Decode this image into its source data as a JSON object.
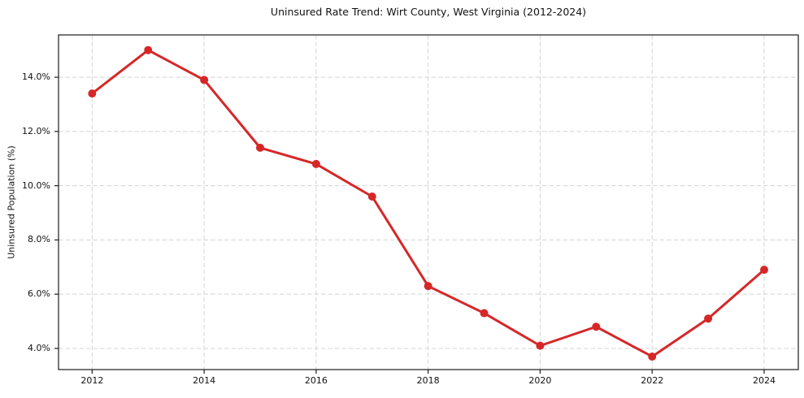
{
  "chart_data": {
    "type": "line",
    "title": "Uninsured Rate Trend: Wirt County, West Virginia (2012-2024)",
    "xlabel": "",
    "ylabel": "Uninsured Population (%)",
    "x": [
      2012,
      2013,
      2014,
      2015,
      2016,
      2017,
      2018,
      2019,
      2020,
      2021,
      2022,
      2023,
      2024
    ],
    "values": [
      13.4,
      15.0,
      13.9,
      11.4,
      10.8,
      9.6,
      6.3,
      5.3,
      4.1,
      4.8,
      3.7,
      5.1,
      6.9
    ],
    "xticks": {
      "values": [
        2012,
        2014,
        2016,
        2018,
        2020,
        2022,
        2024
      ],
      "labels": [
        "2012",
        "2014",
        "2016",
        "2018",
        "2020",
        "2022",
        "2024"
      ]
    },
    "yticks": {
      "values": [
        4,
        6,
        8,
        10,
        12,
        14
      ],
      "labels": [
        "4.0%",
        "6.0%",
        "8.0%",
        "10.0%",
        "12.0%",
        "14.0%"
      ]
    },
    "xlim": [
      2011.4,
      2024.61
    ],
    "ylim": [
      3.22,
      15.56
    ],
    "grid": true,
    "legend": false,
    "style": {
      "line_color": "#d62728",
      "marker_color": "#d62728",
      "grid_color": "#d4d4d4",
      "spine_color": "#1c1c1c",
      "tick_color": "#1c1c1c",
      "background": "#ffffff"
    }
  }
}
